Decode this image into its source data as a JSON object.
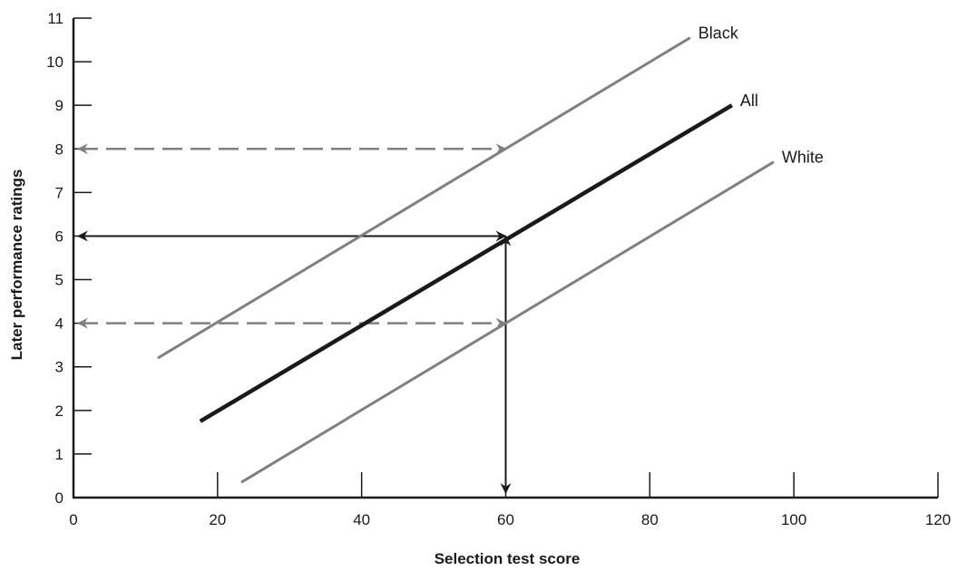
{
  "chart_data": {
    "type": "line",
    "xlabel": "Selection test score",
    "ylabel": "Later performance ratings",
    "xlim": [
      0,
      120
    ],
    "ylim": [
      0,
      11
    ],
    "x_ticks": [
      0,
      20,
      40,
      60,
      80,
      100,
      120
    ],
    "y_ticks": [
      0,
      1,
      2,
      3,
      4,
      5,
      6,
      7,
      8,
      9,
      10,
      11
    ],
    "grid": false,
    "series": [
      {
        "name": "Black",
        "color": "#808080",
        "points": [
          [
            11.7,
            3.2
          ],
          [
            85.6,
            10.55
          ]
        ]
      },
      {
        "name": "All",
        "color": "#1a1a1a",
        "points": [
          [
            17.6,
            1.75
          ],
          [
            91.4,
            9.0
          ]
        ]
      },
      {
        "name": "White",
        "color": "#808080",
        "points": [
          [
            23.3,
            0.35
          ],
          [
            97.2,
            7.7
          ]
        ]
      }
    ],
    "arrows": [
      {
        "from": [
          0,
          8
        ],
        "to": [
          60,
          8
        ],
        "style": "dashed",
        "color": "#808080",
        "heads": "both"
      },
      {
        "from": [
          0,
          6
        ],
        "to": [
          60,
          6
        ],
        "style": "solid",
        "color": "#1a1a1a",
        "heads": "both"
      },
      {
        "from": [
          0,
          4
        ],
        "to": [
          60,
          4
        ],
        "style": "dashed",
        "color": "#808080",
        "heads": "both"
      },
      {
        "from": [
          60,
          0
        ],
        "to": [
          60,
          6
        ],
        "style": "solid",
        "color": "#1a1a1a",
        "heads": "both"
      }
    ]
  }
}
